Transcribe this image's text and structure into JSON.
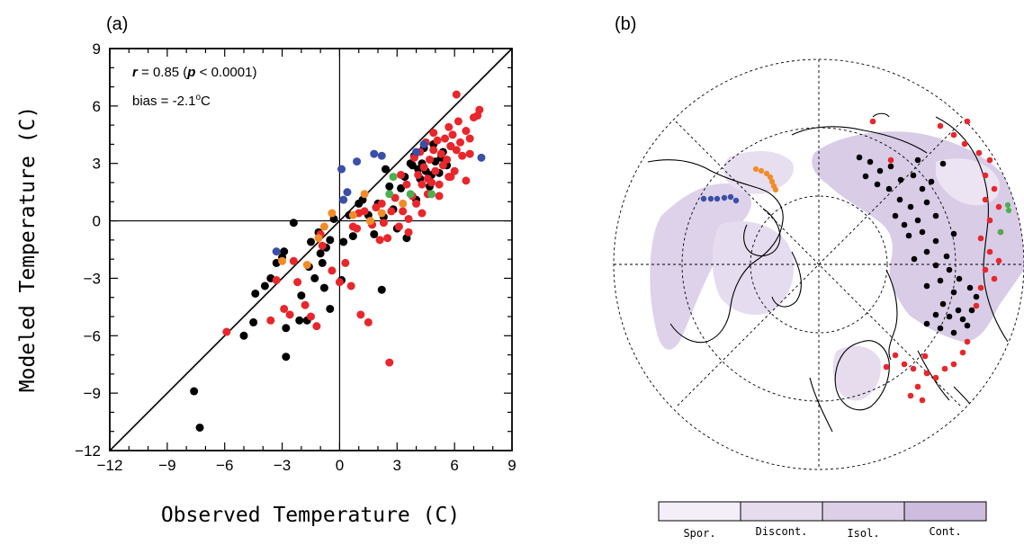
{
  "panel_a": {
    "label": "(a)",
    "annotation_r": "r",
    "annotation_r_rest1": " = 0.85 (",
    "annotation_p": "p",
    "annotation_r_rest2": " < 0.0001)",
    "annotation_bias_prefix": "bias = -2.1",
    "annotation_bias_sup": "o",
    "annotation_bias_suffix": "C"
  },
  "panel_b": {
    "label": "(b)",
    "legend": [
      "Spor.",
      "Discont.",
      "Isol.",
      "Cont."
    ],
    "legend_colors": [
      "#f3eef7",
      "#e6dcee",
      "#dccfe7",
      "#cdbcdd"
    ]
  },
  "colors": {
    "black": "#000000",
    "red": "#e8262b",
    "blue": "#3a4fa8",
    "orange": "#f28c28",
    "green": "#4caf50"
  },
  "chart_data": {
    "type": "scatter",
    "title": "",
    "xlabel": "Observed Temperature (C)",
    "ylabel": "Modeled Temperature (C)",
    "xlim": [
      -12,
      9
    ],
    "ylim": [
      -12,
      9
    ],
    "xticks": [
      "-12",
      "-9",
      "-6",
      "-3",
      "0",
      "3",
      "6",
      "9"
    ],
    "yticks": [
      "-12",
      "-9",
      "-6",
      "-3",
      "0",
      "3",
      "6",
      "9"
    ],
    "series": [
      {
        "color": "black",
        "points": [
          [
            -7.6,
            -8.9
          ],
          [
            -7.3,
            -10.8
          ],
          [
            -5.0,
            -6.0
          ],
          [
            -4.5,
            -5.3
          ],
          [
            -4.4,
            -3.8
          ],
          [
            -3.9,
            -3.4
          ],
          [
            -3.6,
            -3.0
          ],
          [
            -3.3,
            -2.2
          ],
          [
            -3.0,
            -1.9
          ],
          [
            -2.9,
            -1.6
          ],
          [
            -2.8,
            -7.1
          ],
          [
            -2.8,
            -5.6
          ],
          [
            -2.4,
            -0.1
          ],
          [
            -2.1,
            -5.2
          ],
          [
            -2.0,
            -3.9
          ],
          [
            -1.7,
            -5.2
          ],
          [
            -1.6,
            -2.4
          ],
          [
            -1.5,
            -1.1
          ],
          [
            -1.3,
            -3.0
          ],
          [
            -1.1,
            -0.6
          ],
          [
            -1.0,
            -1.7
          ],
          [
            -0.9,
            -2.2
          ],
          [
            -0.8,
            -3.5
          ],
          [
            -0.7,
            -1.4
          ],
          [
            -0.5,
            -4.6
          ],
          [
            -0.5,
            -1.0
          ],
          [
            -0.3,
            0.1
          ],
          [
            0.1,
            -3.1
          ],
          [
            0.2,
            -1.1
          ],
          [
            0.5,
            0.3
          ],
          [
            0.7,
            -0.8
          ],
          [
            1.0,
            0.9
          ],
          [
            1.2,
            1.1
          ],
          [
            1.5,
            0.3
          ],
          [
            1.8,
            -0.7
          ],
          [
            2.0,
            0.9
          ],
          [
            2.2,
            -3.6
          ],
          [
            2.3,
            0.2
          ],
          [
            2.4,
            2.7
          ],
          [
            2.6,
            1.8
          ],
          [
            2.8,
            0.6
          ],
          [
            3.0,
            -0.4
          ],
          [
            3.2,
            1.7
          ],
          [
            3.4,
            2.3
          ],
          [
            3.5,
            -0.9
          ],
          [
            3.8,
            2.9
          ],
          [
            3.9,
            3.4
          ],
          [
            4.0,
            1.1
          ],
          [
            4.2,
            2.2
          ],
          [
            4.4,
            3.8
          ],
          [
            4.5,
            2.6
          ],
          [
            4.7,
            1.8
          ],
          [
            4.9,
            4.0
          ],
          [
            5.0,
            3.1
          ],
          [
            5.2,
            2.5
          ],
          [
            5.4,
            3.6
          ],
          [
            5.6,
            2.9
          ],
          [
            5.8,
            3.9
          ],
          [
            3.7,
            3.0
          ],
          [
            4.3,
            3.0
          ],
          [
            4.8,
            2.4
          ],
          [
            5.3,
            3.3
          ],
          [
            4.1,
            2.7
          ]
        ]
      },
      {
        "color": "red",
        "points": [
          [
            -5.9,
            -5.8
          ],
          [
            -3.6,
            -5.2
          ],
          [
            -3.3,
            -3.1
          ],
          [
            -2.9,
            -4.6
          ],
          [
            -2.6,
            -4.9
          ],
          [
            -2.4,
            -2.1
          ],
          [
            -2.2,
            -3.2
          ],
          [
            -1.8,
            -4.4
          ],
          [
            -1.5,
            -5.0
          ],
          [
            -1.2,
            -5.5
          ],
          [
            -1.0,
            -0.7
          ],
          [
            -0.9,
            -1.3
          ],
          [
            -0.4,
            -2.6
          ],
          [
            0.0,
            -3.2
          ],
          [
            0.3,
            -2.2
          ],
          [
            0.6,
            -3.4
          ],
          [
            0.7,
            -0.3
          ],
          [
            0.9,
            -0.4
          ],
          [
            1.1,
            -4.9
          ],
          [
            1.3,
            0.5
          ],
          [
            1.5,
            -5.3
          ],
          [
            1.7,
            -0.2
          ],
          [
            1.9,
            0.7
          ],
          [
            2.1,
            -1.0
          ],
          [
            2.3,
            -0.1
          ],
          [
            2.5,
            -0.9
          ],
          [
            2.6,
            -7.4
          ],
          [
            2.7,
            0.5
          ],
          [
            2.9,
            1.2
          ],
          [
            3.1,
            -0.3
          ],
          [
            3.3,
            0.5
          ],
          [
            3.5,
            1.9
          ],
          [
            3.6,
            0.1
          ],
          [
            3.8,
            1.3
          ],
          [
            3.9,
            3.3
          ],
          [
            4.0,
            0.9
          ],
          [
            4.1,
            2.4
          ],
          [
            4.2,
            3.6
          ],
          [
            4.3,
            1.9
          ],
          [
            4.4,
            2.8
          ],
          [
            4.5,
            4.1
          ],
          [
            4.6,
            2.2
          ],
          [
            4.7,
            3.2
          ],
          [
            4.8,
            2.0
          ],
          [
            4.9,
            3.7
          ],
          [
            5.0,
            2.6
          ],
          [
            5.1,
            4.2
          ],
          [
            5.2,
            1.9
          ],
          [
            5.3,
            3.5
          ],
          [
            5.4,
            2.9
          ],
          [
            5.5,
            4.3
          ],
          [
            5.6,
            3.2
          ],
          [
            5.7,
            2.3
          ],
          [
            5.8,
            3.9
          ],
          [
            5.9,
            4.5
          ],
          [
            6.0,
            2.6
          ],
          [
            6.1,
            3.7
          ],
          [
            6.2,
            5.2
          ],
          [
            6.3,
            4.1
          ],
          [
            6.4,
            3.4
          ],
          [
            6.6,
            4.7
          ],
          [
            6.8,
            4.3
          ],
          [
            7.0,
            5.4
          ],
          [
            7.2,
            5.5
          ],
          [
            7.3,
            5.8
          ],
          [
            6.1,
            6.6
          ],
          [
            5.7,
            4.9
          ],
          [
            4.9,
            4.6
          ],
          [
            4.3,
            0.4
          ],
          [
            3.6,
            -0.6
          ],
          [
            2.2,
            0.9
          ],
          [
            1.0,
            0.4
          ],
          [
            6.6,
            2.1
          ],
          [
            6.8,
            3.5
          ],
          [
            5.2,
            1.3
          ],
          [
            3.2,
            2.4
          ],
          [
            4.6,
            1.4
          ],
          [
            5.8,
            2.3
          ]
        ]
      },
      {
        "color": "blue",
        "points": [
          [
            -3.3,
            -1.6
          ],
          [
            0.2,
            1.1
          ],
          [
            0.4,
            1.5
          ],
          [
            0.9,
            3.1
          ],
          [
            1.8,
            3.5
          ],
          [
            2.2,
            3.4
          ],
          [
            4.0,
            3.6
          ],
          [
            4.4,
            4.0
          ],
          [
            7.4,
            3.3
          ],
          [
            0.1,
            2.7
          ]
        ]
      },
      {
        "color": "orange",
        "points": [
          [
            -3.0,
            -2.1
          ],
          [
            -1.7,
            -2.3
          ],
          [
            -1.1,
            -0.9
          ],
          [
            -0.8,
            -0.3
          ],
          [
            -0.4,
            0.4
          ],
          [
            0.7,
            0.3
          ],
          [
            1.3,
            1.4
          ],
          [
            1.6,
            0.0
          ],
          [
            2.2,
            0.4
          ],
          [
            3.3,
            0.9
          ]
        ]
      },
      {
        "color": "green",
        "points": [
          [
            2.6,
            1.4
          ],
          [
            2.8,
            2.3
          ],
          [
            3.7,
            1.4
          ],
          [
            4.8,
            1.4
          ]
        ]
      }
    ]
  }
}
